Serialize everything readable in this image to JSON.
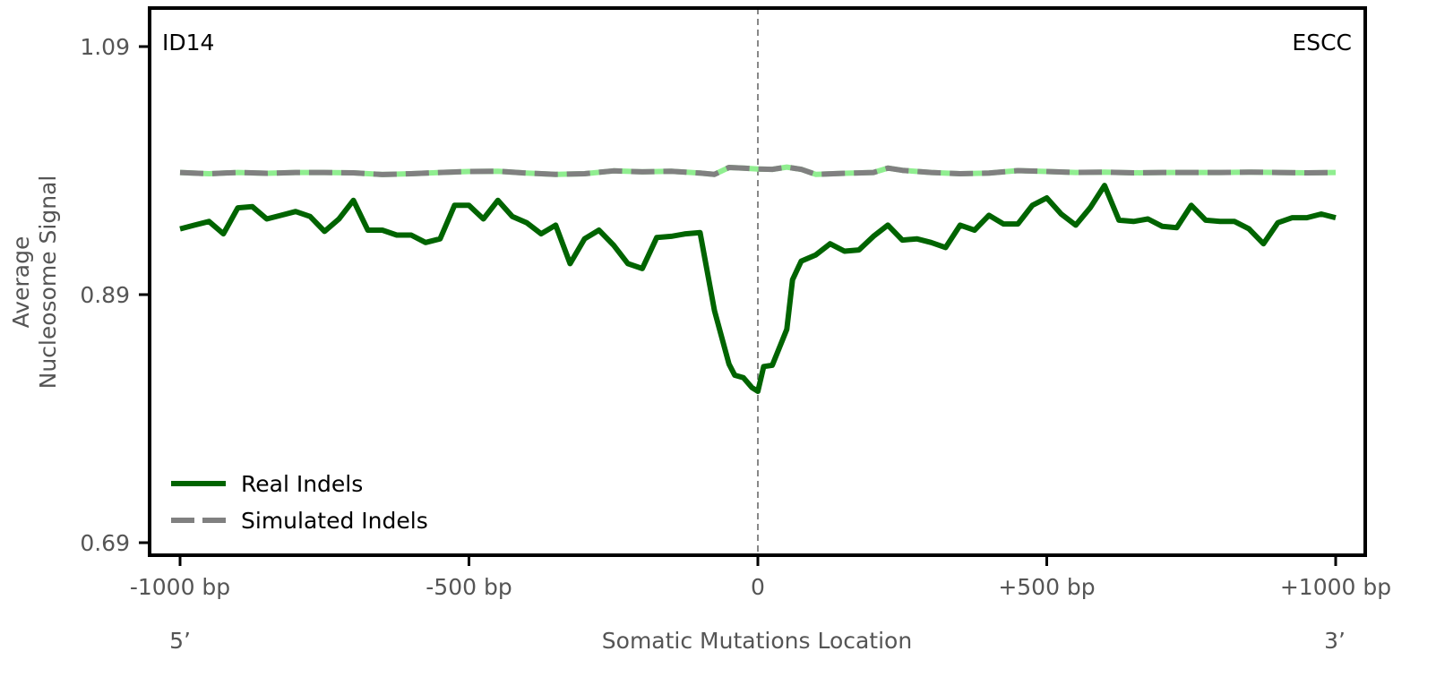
{
  "chart_data": {
    "type": "line",
    "title": "",
    "xlabel": "Somatic Mutations Location",
    "ylabel": [
      "Average",
      "Nucleosome Signal"
    ],
    "xlim": [
      -1000,
      1000
    ],
    "ylim": [
      0.68,
      1.12
    ],
    "x_ticks": [
      {
        "value": -1000,
        "label": "-1000 bp"
      },
      {
        "value": -500,
        "label": "-500 bp"
      },
      {
        "value": 0,
        "label": "0"
      },
      {
        "value": 500,
        "label": "+500 bp"
      },
      {
        "value": 1000,
        "label": "+1000 bp"
      }
    ],
    "y_ticks": [
      {
        "value": 0.69,
        "label": "0.69"
      },
      {
        "value": 0.89,
        "label": "0.89"
      },
      {
        "value": 1.09,
        "label": "1.09"
      }
    ],
    "end_labels": {
      "left": "5’",
      "right": "3’"
    },
    "corner_labels": {
      "left": "ID14",
      "right": "ESCC"
    },
    "center_line": {
      "x": 0,
      "style": "dashed",
      "color": "#888888"
    },
    "grid": false,
    "legend_placement": "lower-left",
    "series": [
      {
        "name": "Real Indels",
        "color": "#006400",
        "style": "solid",
        "x": [
          -1000,
          -975,
          -950,
          -925,
          -900,
          -875,
          -850,
          -825,
          -800,
          -775,
          -750,
          -725,
          -700,
          -675,
          -650,
          -625,
          -600,
          -575,
          -550,
          -525,
          -500,
          -475,
          -450,
          -425,
          -400,
          -375,
          -350,
          -325,
          -300,
          -275,
          -250,
          -225,
          -200,
          -175,
          -150,
          -125,
          -100,
          -75,
          -50,
          -40,
          -25,
          -10,
          0,
          10,
          25,
          50,
          60,
          75,
          100,
          125,
          150,
          175,
          200,
          225,
          250,
          275,
          300,
          325,
          350,
          375,
          400,
          425,
          450,
          475,
          500,
          525,
          550,
          575,
          600,
          625,
          650,
          675,
          700,
          725,
          750,
          775,
          800,
          825,
          850,
          875,
          900,
          925,
          950,
          975,
          1000
        ],
        "values": [
          0.943,
          0.946,
          0.949,
          0.939,
          0.96,
          0.961,
          0.951,
          0.954,
          0.957,
          0.953,
          0.941,
          0.951,
          0.966,
          0.942,
          0.942,
          0.938,
          0.938,
          0.932,
          0.935,
          0.962,
          0.962,
          0.951,
          0.966,
          0.953,
          0.948,
          0.939,
          0.946,
          0.915,
          0.935,
          0.942,
          0.93,
          0.915,
          0.911,
          0.936,
          0.937,
          0.939,
          0.94,
          0.877,
          0.834,
          0.825,
          0.823,
          0.815,
          0.812,
          0.832,
          0.833,
          0.862,
          0.902,
          0.917,
          0.922,
          0.931,
          0.925,
          0.926,
          0.937,
          0.946,
          0.934,
          0.935,
          0.932,
          0.928,
          0.946,
          0.942,
          0.954,
          0.947,
          0.947,
          0.962,
          0.968,
          0.955,
          0.946,
          0.96,
          0.978,
          0.95,
          0.949,
          0.951,
          0.945,
          0.944,
          0.962,
          0.95,
          0.949,
          0.949,
          0.943,
          0.931,
          0.948,
          0.952,
          0.952,
          0.955,
          0.952
        ]
      },
      {
        "name": "Simulated Indels",
        "color": "#808080",
        "highlight_color": "#90ee90",
        "style": "dashed",
        "x": [
          -1000,
          -950,
          -900,
          -850,
          -800,
          -750,
          -700,
          -650,
          -600,
          -550,
          -500,
          -450,
          -400,
          -350,
          -300,
          -250,
          -200,
          -150,
          -100,
          -75,
          -50,
          -25,
          0,
          25,
          50,
          75,
          100,
          150,
          200,
          225,
          250,
          300,
          350,
          400,
          450,
          500,
          550,
          600,
          650,
          700,
          750,
          800,
          850,
          900,
          950,
          1000
        ],
        "values": [
          0.9885,
          0.9875,
          0.9885,
          0.9878,
          0.9885,
          0.9885,
          0.9882,
          0.9868,
          0.9875,
          0.9885,
          0.9893,
          0.9895,
          0.988,
          0.987,
          0.9875,
          0.9898,
          0.989,
          0.9895,
          0.988,
          0.987,
          0.9925,
          0.992,
          0.9912,
          0.991,
          0.9928,
          0.991,
          0.987,
          0.9878,
          0.9885,
          0.992,
          0.9902,
          0.9885,
          0.9875,
          0.988,
          0.99,
          0.9893,
          0.9885,
          0.9888,
          0.9882,
          0.9885,
          0.9885,
          0.9885,
          0.9888,
          0.9885,
          0.9882,
          0.9885
        ]
      }
    ]
  }
}
